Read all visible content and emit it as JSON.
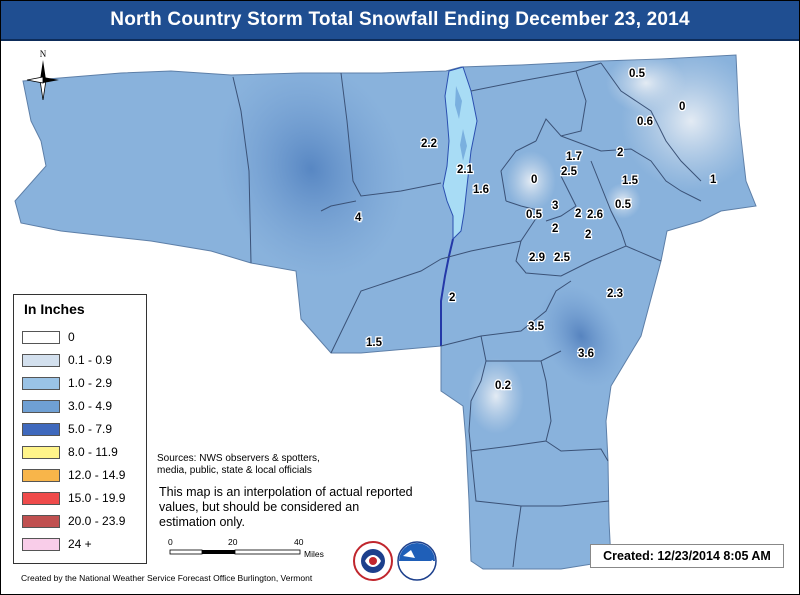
{
  "title": "North Country Storm Total Snowfall Ending December 23, 2014",
  "north_label": "N",
  "legend": {
    "title": "In Inches",
    "items": [
      {
        "label": "0",
        "color": "#ffffff"
      },
      {
        "label": "0.1 - 0.9",
        "color": "#d3e0ee"
      },
      {
        "label": "1.0 - 2.9",
        "color": "#9ac3e6"
      },
      {
        "label": "3.0 - 4.9",
        "color": "#6fa0d4"
      },
      {
        "label": "5.0 - 7.9",
        "color": "#3f69bd"
      },
      {
        "label": "8.0 - 11.9",
        "color": "#fff48a"
      },
      {
        "label": "12.0 - 14.9",
        "color": "#f8b54a"
      },
      {
        "label": "15.0 - 19.9",
        "color": "#ef4b4b"
      },
      {
        "label": "20.0 - 23.9",
        "color": "#c05050"
      },
      {
        "label": "24 +",
        "color": "#f9cde9"
      }
    ]
  },
  "snow_values": [
    "0.5",
    "0",
    "0.6",
    "2.2",
    "2.1",
    "1.6",
    "0",
    "1.7",
    "2.5",
    "2",
    "1.5",
    "1",
    "4",
    "0.5",
    "3",
    "2",
    "2.6",
    "0.5",
    "2",
    "2",
    "2.9",
    "2.5",
    "2",
    "2.3",
    "3.5",
    "1.5",
    "3.6",
    "0.2"
  ],
  "sources": {
    "line1": "Sources: NWS observers & spotters,",
    "line2": "media, public, state & local officials"
  },
  "disclaimer": {
    "line1": "This map is an interpolation of actual reported",
    "line2": "values, but should be considered an",
    "line3": "estimation only."
  },
  "scale_bar": {
    "tick0": "0",
    "tick1": "20",
    "tick2": "40",
    "unit": "Miles"
  },
  "credits": "Created by the National Weather Service Forecast Office Burlington, Vermont",
  "created": "Created: 12/23/2014 8:05 AM",
  "colors": {
    "title_bar": "#1f4e91",
    "land_base": "#89b2dc",
    "darker_snow": "#5f8fc9",
    "lake": "#a8dcf5"
  },
  "icons": [
    "north-arrow-icon",
    "nws-logo-icon",
    "noaa-logo-icon"
  ]
}
